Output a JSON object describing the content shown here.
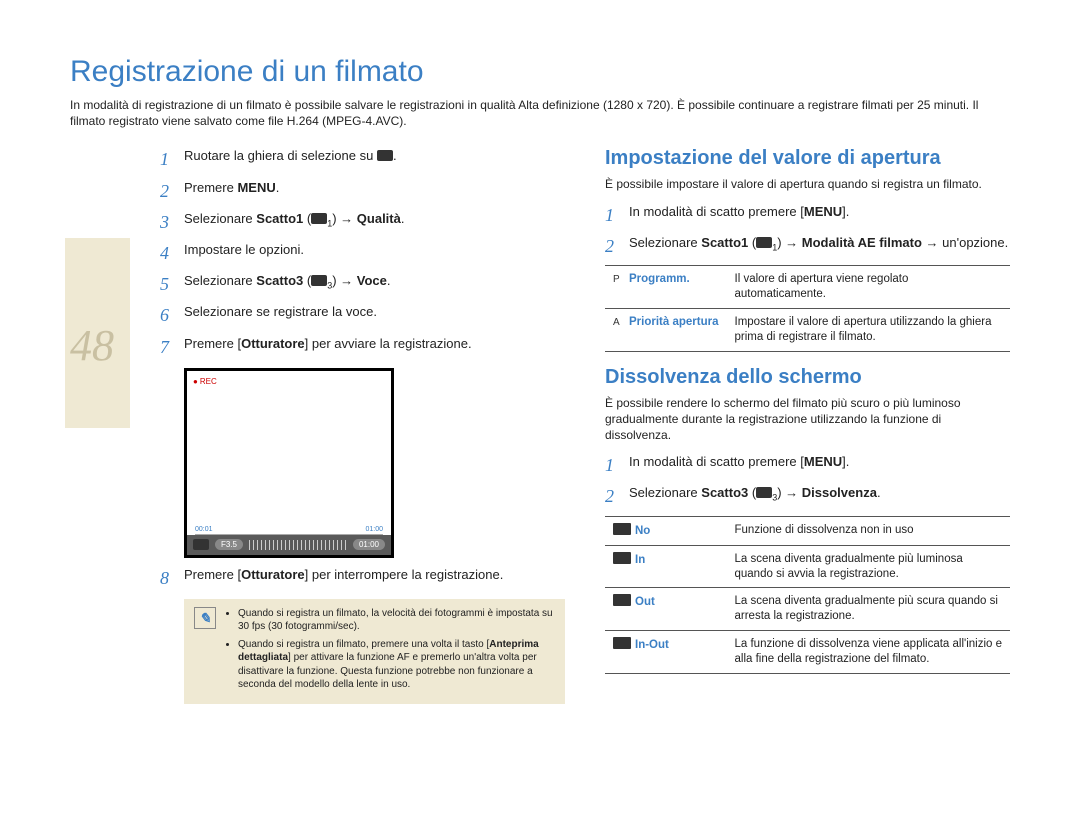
{
  "page_number": "48",
  "title": "Registrazione di un filmato",
  "intro": "In modalità di registrazione di un filmato è possibile salvare le registrazioni in qualità Alta definizione (1280 x 720). È possibile continuare a registrare filmati per 25 minuti. Il filmato registrato viene salvato come file H.264 (MPEG-4.AVC).",
  "left_steps": [
    {
      "n": "1",
      "pre": "Ruotare la ghiera di selezione su ",
      "icon": true,
      "post": "."
    },
    {
      "n": "2",
      "pre": "Premere ",
      "bold": "MENU",
      "post": "."
    },
    {
      "n": "3",
      "pre": "Selezionare ",
      "bold": "Scatto1",
      "mid": " (",
      "icon": true,
      "tag": "1",
      "post2": ") → ",
      "bold2": "Qualità",
      "post3": "."
    },
    {
      "n": "4",
      "pre": "Impostare le opzioni."
    },
    {
      "n": "5",
      "pre": "Selezionare ",
      "bold": "Scatto3",
      "mid": " (",
      "icon": true,
      "tag": "3",
      "post2": ") → ",
      "bold2": "Voce",
      "post3": "."
    },
    {
      "n": "6",
      "pre": "Selezionare se registrare la voce."
    },
    {
      "n": "7",
      "pre": "Premere [",
      "bold": "Otturatore",
      "post": "] per avviare la registrazione."
    }
  ],
  "step8": {
    "n": "8",
    "pre": "Premere [",
    "bold": "Otturatore",
    "post": "] per interrompere la registrazione."
  },
  "screen": {
    "rec": "REC",
    "t1": "00:01",
    "t2": "01:00",
    "f": "F3.5",
    "clock": "01:00"
  },
  "notes": [
    "Quando si registra un filmato, la velocità dei fotogrammi è impostata su 30 fps (30 fotogrammi/sec).",
    "Quando si registra un filmato, premere una volta il tasto [Anteprima dettagliata] per attivare la funzione AF e premerlo un'altra volta per disattivare la funzione. Questa funzione potrebbe non funzionare a seconda del modello della lente in uso."
  ],
  "section1": {
    "title": "Impostazione del valore di apertura",
    "intro": "È possibile impostare il valore di apertura quando si registra un filmato.",
    "steps": [
      {
        "n": "1",
        "pre": "In modalità di scatto premere [",
        "bold": "MENU",
        "post": "]."
      },
      {
        "n": "2",
        "pre": "Selezionare ",
        "bold": "Scatto1",
        "mid": " (",
        "icon": true,
        "tag": "1",
        "post2": ") → ",
        "bold2": "Modalità AE filmato",
        "post3": " → un'opzione."
      }
    ],
    "table": [
      {
        "prefix": "P",
        "key": "Programm.",
        "val": "Il valore di apertura viene regolato automaticamente."
      },
      {
        "prefix": "A",
        "key": "Priorità apertura",
        "val": "Impostare il valore di apertura utilizzando la ghiera prima di registrare il filmato."
      }
    ]
  },
  "section2": {
    "title": "Dissolvenza dello schermo",
    "intro": "È possibile rendere lo schermo del filmato più scuro o più luminoso gradualmente durante la registrazione utilizzando la funzione di dissolvenza.",
    "steps": [
      {
        "n": "1",
        "pre": "In modalità di scatto premere [",
        "bold": "MENU",
        "post": "]."
      },
      {
        "n": "2",
        "pre": "Selezionare ",
        "bold": "Scatto3",
        "mid": " (",
        "icon": true,
        "tag": "3",
        "post2": ") → ",
        "bold2": "Dissolvenza",
        "post3": "."
      }
    ],
    "table": [
      {
        "key": "No",
        "val": "Funzione di dissolvenza non in uso"
      },
      {
        "key": "In",
        "val": "La scena diventa gradualmente più luminosa quando si avvia la registrazione."
      },
      {
        "key": "Out",
        "val": "La scena diventa gradualmente più scura quando si arresta la registrazione."
      },
      {
        "key": "In-Out",
        "val": "La funzione di dissolvenza viene applicata all'inizio e alla fine della registrazione del filmato."
      }
    ]
  }
}
